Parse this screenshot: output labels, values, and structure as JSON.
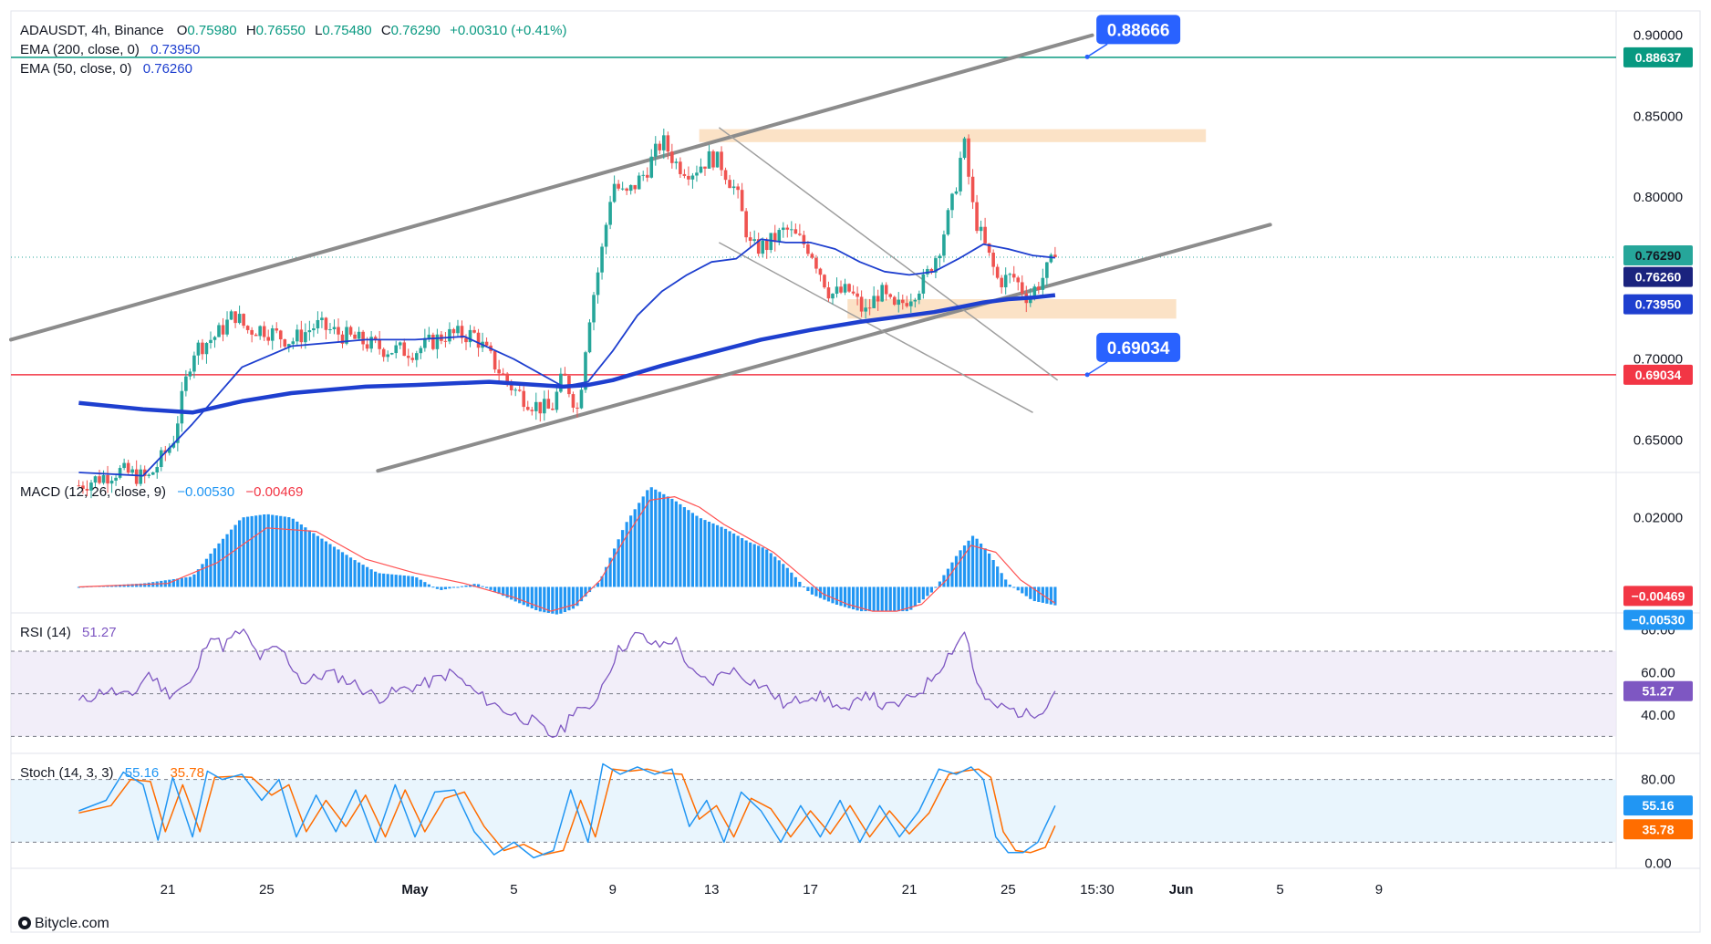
{
  "header": {
    "symbol_line": "ADAUSDT, 4h, Binance",
    "ohlc": [
      {
        "label": "O",
        "value": "0.75980"
      },
      {
        "label": "H",
        "value": "0.76550"
      },
      {
        "label": "L",
        "value": "0.75480"
      },
      {
        "label": "C",
        "value": "0.76290"
      }
    ],
    "change": "+0.00310 (+0.41%)",
    "ema200_label": "EMA (200, close, 0)",
    "ema200_value": "0.73950",
    "ema50_label": "EMA (50, close, 0)",
    "ema50_value": "0.76260"
  },
  "panes": {
    "macd": {
      "label": "MACD (12, 26, close, 9)",
      "value1": "−0.00530",
      "value2": "−0.00469"
    },
    "rsi": {
      "label": "RSI (14)",
      "value": "51.27"
    },
    "stoch": {
      "label": "Stoch (14, 3, 3)",
      "value1": "55.16",
      "value2": "35.78"
    }
  },
  "price_tags": {
    "resistance": "0.88637",
    "last": "0.76290",
    "ema50": "0.76260",
    "ema200": "0.73950",
    "support": "0.69034",
    "macd_signal": "−0.00469",
    "macd_line": "−0.00530",
    "rsi": "51.27",
    "stoch_k": "55.16",
    "stoch_d": "35.78"
  },
  "callouts": {
    "upper": "0.88666",
    "lower": "0.69034"
  },
  "brand": "Bitycle.com",
  "colors": {
    "up": "#26a69a",
    "down": "#ef5350",
    "ema": "#1e3fcf",
    "resistance": "#089981",
    "support": "#f23645",
    "channel": "#8c8c8c",
    "zone": "#fbe2c6",
    "macd_hist": "#2196f3",
    "macd_line": "#2962ff",
    "signal_line": "#ff5252",
    "rsi": "#7e57c2",
    "stoch_k": "#2196f3",
    "stoch_d": "#ff6d00",
    "callout": "#2962ff"
  },
  "chart_data": [
    {
      "type": "candlestick",
      "title": "ADAUSDT, 4h, Binance",
      "ylim": [
        0.63,
        0.915
      ],
      "y_ticks": [
        "0.90000",
        "0.85000",
        "0.80000",
        "0.70000",
        "0.65000"
      ],
      "y_tick_values": [
        0.9,
        0.85,
        0.8,
        0.7,
        0.65
      ],
      "x_ticks": [
        "21",
        "25",
        "May",
        "5",
        "9",
        "13",
        "17",
        "21",
        "25",
        "15:30",
        "Jun",
        "5",
        "9"
      ],
      "x_tick_days": [
        -10,
        -6,
        0,
        4,
        8,
        12,
        16,
        20,
        24,
        27.6,
        31,
        35,
        39
      ],
      "path_days": [
        -13.6,
        -12.0,
        -10.8,
        -9.8,
        -9.0,
        -8.0,
        -7.3,
        -6.8,
        -6.2,
        -5.0,
        -4.0,
        -2.6,
        -1.2,
        0.0,
        1.2,
        2.4,
        3.4,
        4.0,
        4.8,
        5.5,
        6.0,
        6.6,
        7.0,
        7.6,
        8.0,
        8.5,
        9.3,
        10.0,
        10.6,
        11.2,
        12.0,
        12.4,
        13.0,
        13.6,
        14.2,
        15.0,
        16.0,
        16.8,
        17.6,
        18.2,
        18.8,
        19.4,
        20.0,
        20.6,
        21.2,
        21.8,
        22.2,
        22.6,
        23.0,
        23.6,
        24.2,
        24.8,
        25.3,
        25.9
      ],
      "path_close": [
        0.622,
        0.631,
        0.626,
        0.649,
        0.705,
        0.715,
        0.728,
        0.718,
        0.719,
        0.711,
        0.721,
        0.713,
        0.706,
        0.705,
        0.715,
        0.715,
        0.693,
        0.681,
        0.672,
        0.668,
        0.69,
        0.668,
        0.722,
        0.77,
        0.81,
        0.8,
        0.815,
        0.835,
        0.82,
        0.816,
        0.825,
        0.82,
        0.803,
        0.768,
        0.77,
        0.78,
        0.768,
        0.74,
        0.742,
        0.728,
        0.742,
        0.73,
        0.739,
        0.748,
        0.768,
        0.8,
        0.835,
        0.79,
        0.772,
        0.748,
        0.751,
        0.738,
        0.748,
        0.7629
      ],
      "ema50_days": [
        -13.6,
        -11.0,
        -9.0,
        -7.0,
        -5.0,
        -2.0,
        0.0,
        2.0,
        4.0,
        6.0,
        7.0,
        8.0,
        9.0,
        10.0,
        11.0,
        12.0,
        13.0,
        14.0,
        15.0,
        16.0,
        17.0,
        18.0,
        19.0,
        20.0,
        21.0,
        22.0,
        23.0,
        24.0,
        25.0,
        25.9
      ],
      "ema50_values": [
        0.63,
        0.628,
        0.66,
        0.695,
        0.708,
        0.712,
        0.712,
        0.714,
        0.7,
        0.683,
        0.686,
        0.705,
        0.727,
        0.742,
        0.752,
        0.76,
        0.762,
        0.774,
        0.772,
        0.772,
        0.768,
        0.76,
        0.754,
        0.752,
        0.754,
        0.762,
        0.771,
        0.768,
        0.764,
        0.7626
      ],
      "ema200_days": [
        -13.6,
        -11.0,
        -9.0,
        -7.0,
        -5.0,
        -2.0,
        0.0,
        3.0,
        6.0,
        7.0,
        8.0,
        10.0,
        12.0,
        14.0,
        16.0,
        18.0,
        20.0,
        21.0,
        22.0,
        23.0,
        24.0,
        25.0,
        25.9
      ],
      "ema200_values": [
        0.673,
        0.669,
        0.667,
        0.674,
        0.679,
        0.683,
        0.684,
        0.686,
        0.683,
        0.684,
        0.687,
        0.696,
        0.704,
        0.712,
        0.718,
        0.723,
        0.727,
        0.729,
        0.732,
        0.735,
        0.737,
        0.738,
        0.7395
      ],
      "horizontal_levels": [
        {
          "value": 0.88637,
          "label": "0.88637"
        },
        {
          "value": 0.69034,
          "label": "0.69034"
        }
      ],
      "callouts": [
        {
          "text": "0.88666",
          "day": 27.2,
          "value": 0.88666
        },
        {
          "text": "0.69034",
          "day": 27.2,
          "value": 0.69034
        }
      ]
    },
    {
      "type": "bar",
      "title": "MACD (12, 26, close, 9)",
      "ylim": [
        -0.0075,
        0.033
      ],
      "y_ticks": [
        "0.02000"
      ],
      "y_tick_values": [
        0.02
      ],
      "hist_days": [
        -13.6,
        -11.0,
        -9.0,
        -8.0,
        -7.0,
        -6.0,
        -5.0,
        -4.0,
        -2.5,
        -1.5,
        0.0,
        1.0,
        2.5,
        4.0,
        5.0,
        5.8,
        6.5,
        7.0,
        7.5,
        8.5,
        9.5,
        10.5,
        11.5,
        12.5,
        13.5,
        14.2,
        15.0,
        16.0,
        17.0,
        18.0,
        19.0,
        20.0,
        21.0,
        22.0,
        22.6,
        23.2,
        24.0,
        25.0,
        25.9
      ],
      "hist_values": [
        0.0,
        0.001,
        0.003,
        0.012,
        0.02,
        0.021,
        0.02,
        0.015,
        0.008,
        0.004,
        0.003,
        -0.001,
        0.001,
        -0.004,
        -0.007,
        -0.008,
        -0.006,
        -0.002,
        0.002,
        0.018,
        0.029,
        0.025,
        0.02,
        0.017,
        0.013,
        0.011,
        0.006,
        -0.002,
        -0.005,
        -0.007,
        -0.007,
        -0.007,
        -0.001,
        0.01,
        0.015,
        0.01,
        0.001,
        -0.004,
        -0.0053
      ],
      "signal_days": [
        -13.6,
        -10.0,
        -8.0,
        -6.0,
        -4.0,
        -2.0,
        0.0,
        2.0,
        4.0,
        5.5,
        6.5,
        7.5,
        8.5,
        9.5,
        10.5,
        11.5,
        12.5,
        13.5,
        14.5,
        15.5,
        16.5,
        17.5,
        18.5,
        19.5,
        20.5,
        21.5,
        22.5,
        23.5,
        24.5,
        25.9
      ],
      "signal_values": [
        0.0,
        0.001,
        0.007,
        0.017,
        0.016,
        0.008,
        0.004,
        0.001,
        -0.003,
        -0.007,
        -0.005,
        0.002,
        0.014,
        0.025,
        0.026,
        0.023,
        0.018,
        0.014,
        0.01,
        0.004,
        -0.002,
        -0.005,
        -0.007,
        -0.007,
        -0.005,
        0.002,
        0.012,
        0.01,
        0.002,
        -0.0047
      ]
    },
    {
      "type": "line",
      "title": "RSI (14)",
      "ylim": [
        22,
        88
      ],
      "y_ticks": [
        "80.00",
        "60.00",
        "40.00"
      ],
      "y_tick_values": [
        80,
        60,
        40
      ],
      "band": [
        30,
        70
      ],
      "midline": 50,
      "days": [
        -13.6,
        -12.5,
        -11.5,
        -10.8,
        -10.0,
        -9.0,
        -8.3,
        -7.8,
        -7.0,
        -6.3,
        -5.5,
        -4.5,
        -3.5,
        -2.5,
        -1.5,
        -0.5,
        0.5,
        1.5,
        2.5,
        3.2,
        4.0,
        4.8,
        5.5,
        6.0,
        6.5,
        7.0,
        7.6,
        8.2,
        9.0,
        9.8,
        10.5,
        11.3,
        12.0,
        12.7,
        13.5,
        14.3,
        15.0,
        16.0,
        16.8,
        17.5,
        18.2,
        19.0,
        19.8,
        20.6,
        21.2,
        21.8,
        22.3,
        22.7,
        23.2,
        24.0,
        24.8,
        25.5,
        25.9
      ],
      "values": [
        46,
        52,
        48,
        60,
        50,
        55,
        79,
        72,
        80,
        67,
        72,
        55,
        60,
        55,
        48,
        52,
        55,
        60,
        50,
        45,
        40,
        37,
        30,
        33,
        45,
        40,
        55,
        70,
        78,
        72,
        76,
        58,
        55,
        62,
        57,
        52,
        44,
        50,
        47,
        40,
        52,
        43,
        46,
        53,
        62,
        72,
        80,
        55,
        45,
        43,
        40,
        44,
        51.27
      ]
    },
    {
      "type": "line",
      "title": "Stoch (14, 3, 3)",
      "ylim": [
        -5,
        105
      ],
      "y_ticks": [
        "80.00",
        "0.00"
      ],
      "y_tick_values": [
        80,
        0
      ],
      "band": [
        20,
        80
      ],
      "k_days": [
        -13.6,
        -12.5,
        -11.8,
        -11.0,
        -10.4,
        -9.8,
        -9.0,
        -8.4,
        -7.8,
        -7.0,
        -6.2,
        -5.5,
        -4.8,
        -4.0,
        -3.2,
        -2.4,
        -1.6,
        -0.8,
        0.0,
        0.8,
        1.6,
        2.4,
        3.2,
        4.0,
        4.8,
        5.6,
        6.3,
        7.0,
        7.6,
        8.3,
        9.0,
        9.7,
        10.4,
        11.1,
        11.8,
        12.5,
        13.2,
        14.0,
        14.8,
        15.6,
        16.4,
        17.2,
        18.0,
        18.8,
        19.6,
        20.4,
        21.2,
        21.9,
        22.5,
        23.0,
        23.5,
        24.0,
        24.6,
        25.2,
        25.9
      ],
      "k_values": [
        50,
        60,
        87,
        75,
        22,
        82,
        25,
        88,
        80,
        85,
        60,
        80,
        25,
        65,
        30,
        70,
        20,
        75,
        25,
        68,
        70,
        30,
        8,
        20,
        5,
        12,
        70,
        20,
        95,
        85,
        92,
        85,
        90,
        35,
        60,
        20,
        68,
        50,
        20,
        55,
        25,
        60,
        20,
        55,
        25,
        50,
        90,
        85,
        92,
        80,
        25,
        10,
        10,
        20,
        55
      ],
      "d_days": [
        -13.6,
        -12.3,
        -11.5,
        -10.7,
        -10.1,
        -9.4,
        -8.7,
        -8.1,
        -7.4,
        -6.6,
        -5.8,
        -5.1,
        -4.4,
        -3.6,
        -2.8,
        -2.0,
        -1.2,
        -0.4,
        0.4,
        1.2,
        2.0,
        2.8,
        3.6,
        4.4,
        5.2,
        6.0,
        6.7,
        7.3,
        8.0,
        8.7,
        9.4,
        10.1,
        10.8,
        11.5,
        12.2,
        12.9,
        13.6,
        14.4,
        15.2,
        16.0,
        16.8,
        17.6,
        18.4,
        19.2,
        20.0,
        20.8,
        21.6,
        22.2,
        22.8,
        23.3,
        23.8,
        24.3,
        24.9,
        25.5,
        25.9
      ],
      "d_values": [
        48,
        55,
        80,
        78,
        30,
        75,
        30,
        82,
        83,
        82,
        65,
        75,
        30,
        60,
        35,
        65,
        25,
        70,
        30,
        62,
        68,
        35,
        12,
        18,
        8,
        12,
        60,
        25,
        90,
        88,
        90,
        86,
        85,
        42,
        55,
        25,
        62,
        52,
        25,
        50,
        28,
        55,
        25,
        50,
        28,
        48,
        85,
        88,
        90,
        82,
        30,
        12,
        10,
        15,
        35.78
      ]
    }
  ]
}
